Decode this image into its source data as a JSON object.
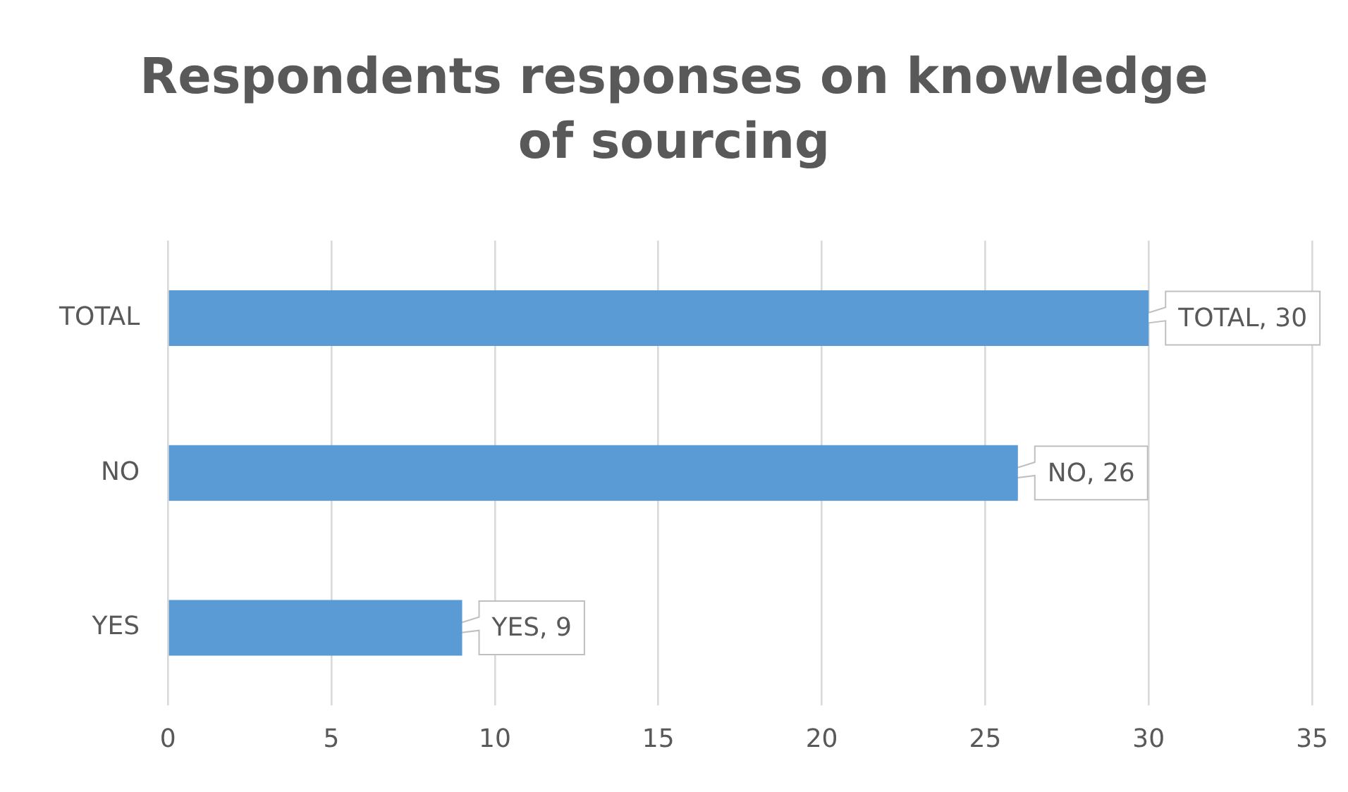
{
  "chart_data": {
    "type": "bar",
    "orientation": "horizontal",
    "title": "Respondents responses on knowledge of sourcing",
    "categories": [
      "TOTAL",
      "NO",
      "YES"
    ],
    "values": [
      30,
      26,
      9
    ],
    "color": "#5b9bd5",
    "value_labels": [
      "TOTAL, 30",
      "NO, 26",
      "YES, 9"
    ],
    "xlim": [
      0,
      35
    ],
    "xticks": [
      0,
      5,
      10,
      15,
      20,
      25,
      30,
      35
    ],
    "grid": "x",
    "legend": false
  }
}
